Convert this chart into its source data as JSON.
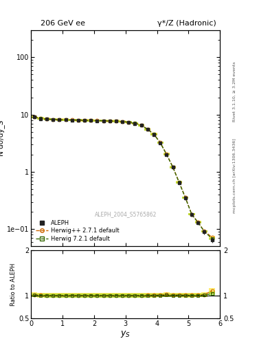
{
  "title_left": "206 GeV ee",
  "title_right": "γ*/Z (Hadronic)",
  "xlabel": "y_S",
  "ylabel_main": "N dσ/dy_S",
  "ylabel_ratio": "Ratio to ALEPH",
  "right_label_top": "Rivet 3.1.10, ≥ 3.2M events",
  "right_label_bottom": "mcplots.cern.ch [arXiv:1306.3436]",
  "watermark": "ALEPH_2004_S5765862",
  "aleph_x": [
    0.1,
    0.3,
    0.5,
    0.7,
    0.9,
    1.1,
    1.3,
    1.5,
    1.7,
    1.9,
    2.1,
    2.3,
    2.5,
    2.7,
    2.9,
    3.1,
    3.3,
    3.5,
    3.7,
    3.9,
    4.1,
    4.3,
    4.5,
    4.7,
    4.9,
    5.1,
    5.3,
    5.5,
    5.75
  ],
  "aleph_y": [
    9.0,
    8.5,
    8.3,
    8.2,
    8.1,
    8.05,
    8.0,
    7.95,
    7.9,
    7.85,
    7.8,
    7.75,
    7.7,
    7.65,
    7.5,
    7.3,
    7.0,
    6.5,
    5.5,
    4.5,
    3.2,
    2.0,
    1.2,
    0.65,
    0.35,
    0.18,
    0.13,
    0.09,
    0.065
  ],
  "aleph_yerr": [
    0.3,
    0.2,
    0.2,
    0.2,
    0.2,
    0.15,
    0.15,
    0.15,
    0.15,
    0.15,
    0.15,
    0.15,
    0.15,
    0.15,
    0.15,
    0.15,
    0.15,
    0.15,
    0.15,
    0.15,
    0.12,
    0.1,
    0.08,
    0.05,
    0.03,
    0.015,
    0.012,
    0.009,
    0.007
  ],
  "herwig271_y": [
    9.2,
    8.6,
    8.35,
    8.25,
    8.15,
    8.1,
    8.05,
    8.0,
    7.95,
    7.9,
    7.85,
    7.8,
    7.75,
    7.7,
    7.55,
    7.35,
    7.05,
    6.55,
    5.55,
    4.55,
    3.25,
    2.05,
    1.22,
    0.66,
    0.355,
    0.182,
    0.132,
    0.092,
    0.072
  ],
  "herwig721_y": [
    9.1,
    8.55,
    8.32,
    8.22,
    8.12,
    8.07,
    8.02,
    7.97,
    7.92,
    7.87,
    7.82,
    7.77,
    7.72,
    7.67,
    7.52,
    7.32,
    7.02,
    6.52,
    5.52,
    4.52,
    3.22,
    2.02,
    1.21,
    0.655,
    0.352,
    0.181,
    0.131,
    0.091,
    0.068
  ],
  "herwig271_band": 0.05,
  "herwig721_band": 0.04,
  "herwig271_color": "#cc6600",
  "herwig721_color": "#336600",
  "aleph_color": "#222222",
  "xlim": [
    0,
    6
  ],
  "ylim_main": [
    0.05,
    300
  ],
  "ylim_ratio": [
    0.5,
    2.0
  ],
  "bg_color": "#ffffff"
}
